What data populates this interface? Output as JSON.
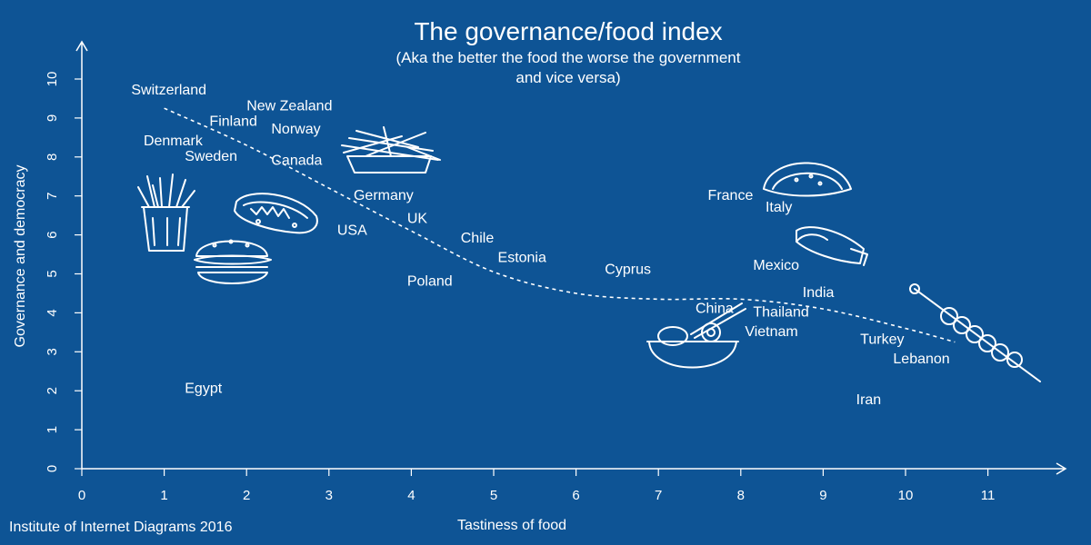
{
  "chart_data": {
    "type": "scatter",
    "title": "The governance/food index",
    "subtitle_lines": [
      "(Aka the better the food the worse the government",
      "and vice versa)"
    ],
    "xlabel": "Tastiness of food",
    "ylabel": "Governance and democracy",
    "xlim": [
      0,
      12
    ],
    "ylim": [
      0,
      11
    ],
    "xticks": [
      0,
      1,
      2,
      3,
      4,
      5,
      6,
      7,
      8,
      9,
      10,
      11
    ],
    "yticks": [
      0,
      1,
      2,
      3,
      4,
      5,
      6,
      7,
      8,
      9,
      10
    ],
    "grid": false,
    "points": [
      {
        "label": "Switzerland",
        "x": 0.6,
        "y": 9.6
      },
      {
        "label": "New Zealand",
        "x": 2.0,
        "y": 9.2
      },
      {
        "label": "Finland",
        "x": 1.55,
        "y": 8.8
      },
      {
        "label": "Norway",
        "x": 2.3,
        "y": 8.6
      },
      {
        "label": "Denmark",
        "x": 0.75,
        "y": 8.3
      },
      {
        "label": "Sweden",
        "x": 1.25,
        "y": 7.9
      },
      {
        "label": "Canada",
        "x": 2.3,
        "y": 7.8
      },
      {
        "label": "Germany",
        "x": 3.3,
        "y": 6.9
      },
      {
        "label": "UK",
        "x": 3.95,
        "y": 6.3
      },
      {
        "label": "USA",
        "x": 3.1,
        "y": 6.0
      },
      {
        "label": "Chile",
        "x": 4.6,
        "y": 5.8
      },
      {
        "label": "Estonia",
        "x": 5.05,
        "y": 5.3
      },
      {
        "label": "Poland",
        "x": 3.95,
        "y": 4.7
      },
      {
        "label": "Cyprus",
        "x": 6.35,
        "y": 5.0
      },
      {
        "label": "France",
        "x": 7.6,
        "y": 6.9
      },
      {
        "label": "Italy",
        "x": 8.3,
        "y": 6.6
      },
      {
        "label": "Mexico",
        "x": 8.15,
        "y": 5.1
      },
      {
        "label": "India",
        "x": 8.75,
        "y": 4.4
      },
      {
        "label": "China",
        "x": 7.45,
        "y": 4.0
      },
      {
        "label": "Thailand",
        "x": 8.15,
        "y": 3.9
      },
      {
        "label": "Vietnam",
        "x": 8.05,
        "y": 3.4
      },
      {
        "label": "Turkey",
        "x": 9.45,
        "y": 3.2
      },
      {
        "label": "Lebanon",
        "x": 9.85,
        "y": 2.7
      },
      {
        "label": "Egypt",
        "x": 1.25,
        "y": 1.95
      },
      {
        "label": "Iran",
        "x": 9.4,
        "y": 1.65
      }
    ],
    "trend_line": {
      "style": "dashed",
      "points": [
        [
          1.0,
          9.25
        ],
        [
          2.0,
          8.3
        ],
        [
          3.0,
          7.2
        ],
        [
          4.0,
          6.1
        ],
        [
          5.0,
          5.05
        ],
        [
          6.0,
          4.5
        ],
        [
          7.0,
          4.35
        ],
        [
          8.0,
          4.35
        ],
        [
          9.0,
          4.1
        ],
        [
          10.0,
          3.6
        ],
        [
          10.6,
          3.25
        ]
      ]
    },
    "illustrations": [
      "fries-bucket-icon",
      "hotdog-icon",
      "burger-icon",
      "poutine-icon",
      "taco-icon",
      "burrito-icon",
      "noodle-bowl-icon",
      "kebab-skewer-icon"
    ]
  },
  "credit": "Institute of Internet Diagrams 2016",
  "colors": {
    "background": "#0e5495",
    "foreground": "#ffffff"
  }
}
